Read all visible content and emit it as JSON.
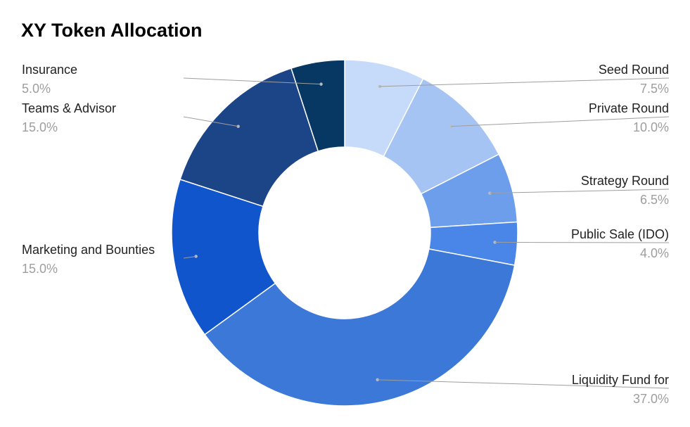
{
  "chart_data": {
    "type": "pie",
    "donut": true,
    "title": "XY Token Allocation",
    "slices": [
      {
        "label": "Seed Round",
        "value": 7.5,
        "percent_label": "7.5%",
        "color": "#c6dafa",
        "side": "right"
      },
      {
        "label": "Private Round",
        "value": 10.0,
        "percent_label": "10.0%",
        "color": "#a6c4f3",
        "side": "right"
      },
      {
        "label": "Strategy Round",
        "value": 6.5,
        "percent_label": "6.5%",
        "color": "#6d9eec",
        "side": "right"
      },
      {
        "label": "Public Sale (IDO)",
        "value": 4.0,
        "percent_label": "4.0%",
        "color": "#4a86e8",
        "side": "right"
      },
      {
        "label": "Liquidity Fund for",
        "value": 37.0,
        "percent_label": "37.0%",
        "color": "#3c78d8",
        "side": "right"
      },
      {
        "label": "Marketing and Bounties",
        "value": 15.0,
        "percent_label": "15.0%",
        "color": "#1155cc",
        "side": "left"
      },
      {
        "label": "Teams & Advisor",
        "value": 15.0,
        "percent_label": "15.0%",
        "color": "#1c4587",
        "side": "left"
      },
      {
        "label": "Insurance",
        "value": 5.0,
        "percent_label": "5.0%",
        "color": "#073763",
        "side": "left"
      }
    ]
  }
}
